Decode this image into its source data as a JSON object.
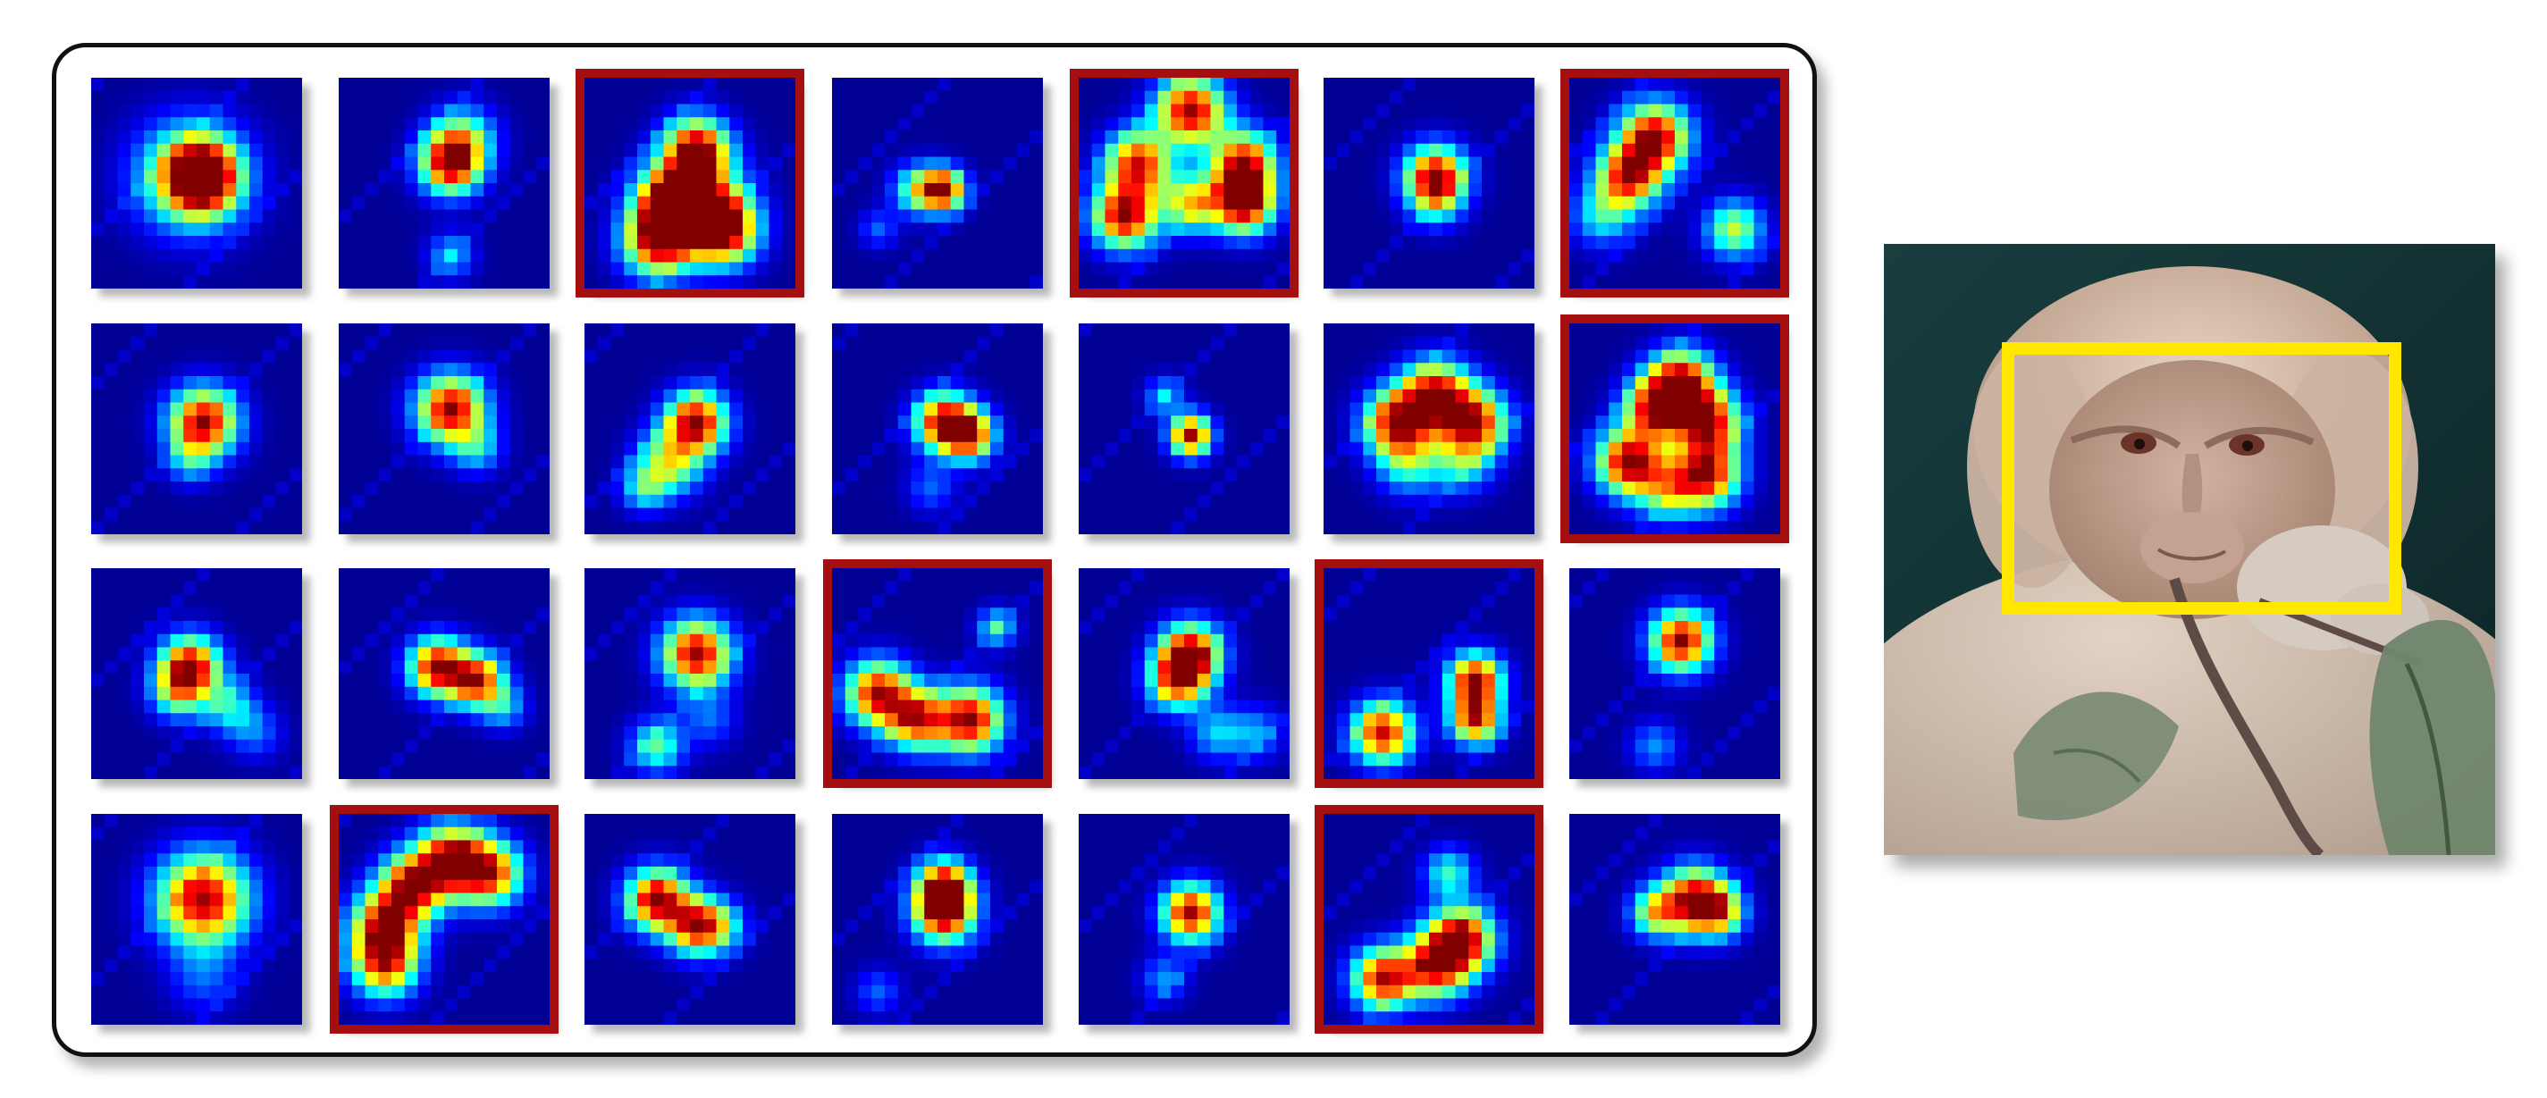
{
  "figure": {
    "tiles_grid": {
      "rows": 4,
      "cols": 7,
      "highlight_color": "#a50f0f",
      "colormap": "jet",
      "tiles": [
        {
          "name": "tile-1",
          "highlighted": false
        },
        {
          "name": "tile-2",
          "highlighted": false
        },
        {
          "name": "tile-3",
          "highlighted": true
        },
        {
          "name": "tile-4",
          "highlighted": false
        },
        {
          "name": "tile-5",
          "highlighted": true
        },
        {
          "name": "tile-6",
          "highlighted": false
        },
        {
          "name": "tile-7",
          "highlighted": true
        },
        {
          "name": "tile-8",
          "highlighted": false
        },
        {
          "name": "tile-9",
          "highlighted": false
        },
        {
          "name": "tile-10",
          "highlighted": false
        },
        {
          "name": "tile-11",
          "highlighted": false
        },
        {
          "name": "tile-12",
          "highlighted": false
        },
        {
          "name": "tile-13",
          "highlighted": false
        },
        {
          "name": "tile-14",
          "highlighted": true
        },
        {
          "name": "tile-15",
          "highlighted": false
        },
        {
          "name": "tile-16",
          "highlighted": false
        },
        {
          "name": "tile-17",
          "highlighted": false
        },
        {
          "name": "tile-18",
          "highlighted": true
        },
        {
          "name": "tile-19",
          "highlighted": false
        },
        {
          "name": "tile-20",
          "highlighted": true
        },
        {
          "name": "tile-21",
          "highlighted": false
        },
        {
          "name": "tile-22",
          "highlighted": false
        },
        {
          "name": "tile-23",
          "highlighted": true
        },
        {
          "name": "tile-24",
          "highlighted": false
        },
        {
          "name": "tile-25",
          "highlighted": false
        },
        {
          "name": "tile-26",
          "highlighted": false
        },
        {
          "name": "tile-27",
          "highlighted": true
        },
        {
          "name": "tile-28",
          "highlighted": false
        }
      ]
    },
    "photo": {
      "subject": "monkey-face",
      "box_color": "#ffe700"
    }
  }
}
